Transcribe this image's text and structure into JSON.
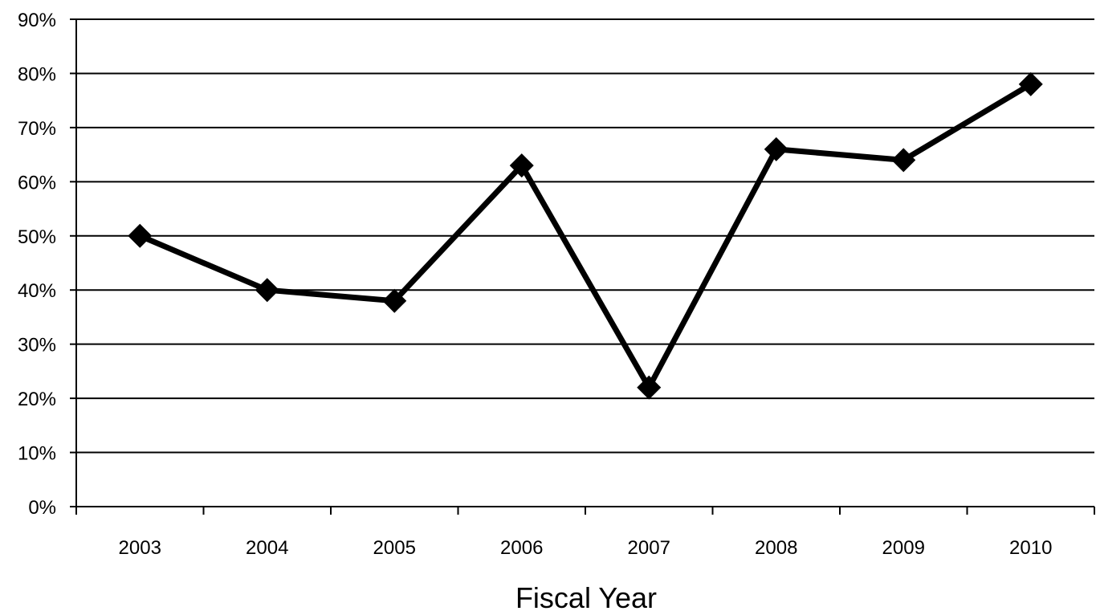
{
  "chart_data": {
    "type": "line",
    "title": "",
    "xlabel": "Fiscal Year",
    "ylabel": "",
    "categories": [
      "2003",
      "2004",
      "2005",
      "2006",
      "2007",
      "2008",
      "2009",
      "2010"
    ],
    "series": [
      {
        "values": [
          50,
          40,
          38,
          63,
          22,
          66,
          64,
          78
        ],
        "color": "#000000",
        "marker": "diamond"
      }
    ],
    "ylim": [
      0,
      90
    ],
    "yticks": [
      0,
      10,
      20,
      30,
      40,
      50,
      60,
      70,
      80,
      90
    ],
    "ytick_labels": [
      "0%",
      "10%",
      "20%",
      "30%",
      "40%",
      "50%",
      "60%",
      "70%",
      "80%",
      "90%"
    ],
    "grid": true,
    "legend": "none"
  }
}
